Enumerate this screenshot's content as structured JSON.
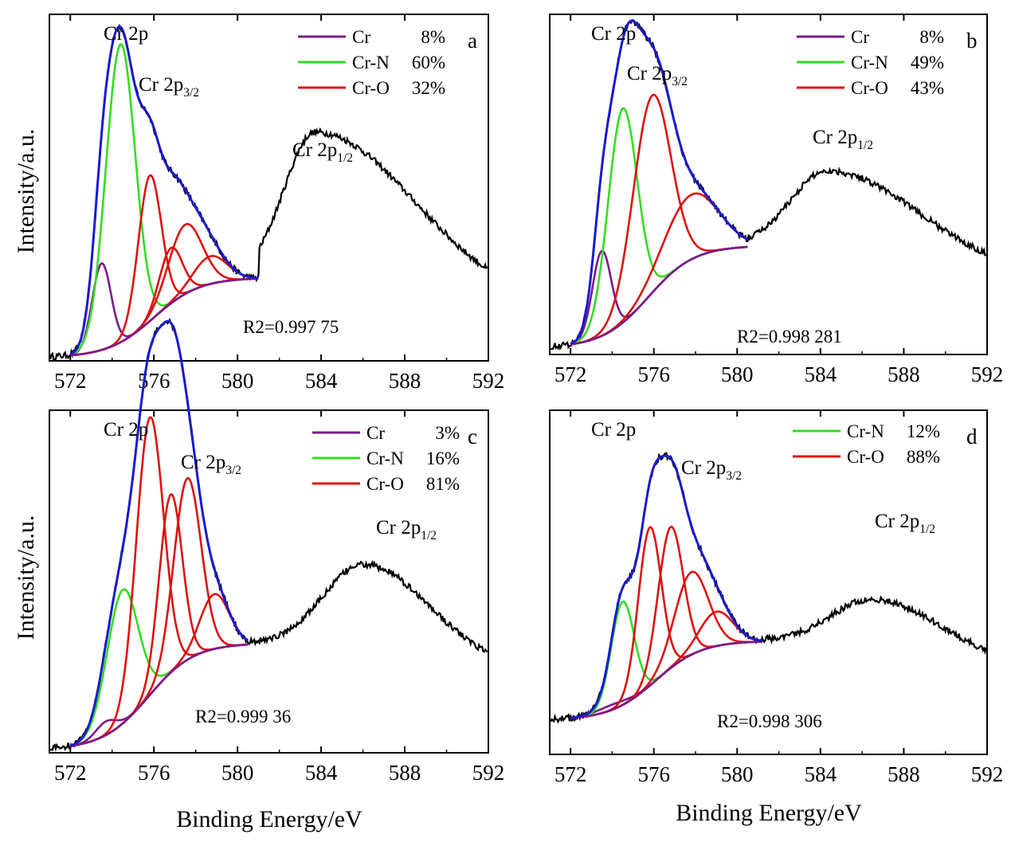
{
  "figure": {
    "ylabel": "Intensity/a.u.",
    "xlabel": "Binding Energy/eV"
  },
  "colors": {
    "Cr": "#7a1a8c",
    "Cr-N": "#33dd22",
    "Cr-O": "#dd1111",
    "envelope": "#1a1acc",
    "raw": "#000000",
    "background": "#7a1a8c"
  },
  "chart_data": [
    {
      "type": "line",
      "panel": "a",
      "title_text": "Cr 2p",
      "peak_32": "Cr 2p3/2",
      "peak_12": "Cr 2p1/2",
      "r2": "R2=0.997 75",
      "xlim": [
        571,
        592
      ],
      "xticks": [
        572,
        576,
        580,
        584,
        588,
        592
      ],
      "legend": [
        {
          "name": "Cr",
          "pct": "8%"
        },
        {
          "name": "Cr-N",
          "pct": "60%"
        },
        {
          "name": "Cr-O",
          "pct": "32%"
        }
      ],
      "fit_range": [
        572,
        581
      ],
      "base": [
        0.01,
        0.24
      ],
      "peak_rel": [
        1.0,
        0.75
      ],
      "raw_peaks": [
        [
          574.4,
          0.86,
          0.85,
          2.6
        ],
        [
          583.7,
          0.64,
          1.5,
          4.5
        ]
      ],
      "components": [
        {
          "type": "Cr",
          "center": 573.5,
          "height": 0.25,
          "width": 0.45
        },
        {
          "type": "Cr-N",
          "center": 574.4,
          "height": 0.86,
          "width": 0.7
        },
        {
          "type": "Cr-O",
          "center": 575.8,
          "height": 0.42,
          "width": 0.55
        },
        {
          "type": "Cr-O",
          "center": 576.8,
          "height": 0.16,
          "width": 0.55
        },
        {
          "type": "Cr-O",
          "center": 577.5,
          "height": 0.2,
          "width": 0.8
        },
        {
          "type": "Cr-O",
          "center": 578.7,
          "height": 0.08,
          "width": 0.8
        }
      ]
    },
    {
      "type": "line",
      "panel": "b",
      "title_text": "Cr 2p",
      "peak_32": "Cr 2p3/2",
      "peak_12": "Cr 2p1/2",
      "r2": "R2=0.998 281",
      "xlim": [
        571,
        592
      ],
      "xticks": [
        572,
        576,
        580,
        584,
        588,
        592
      ],
      "legend": [
        {
          "name": "Cr",
          "pct": "8%"
        },
        {
          "name": "Cr-N",
          "pct": "49%"
        },
        {
          "name": "Cr-O",
          "pct": "43%"
        }
      ],
      "fit_range": [
        572,
        580.5
      ],
      "base": [
        0.02,
        0.32
      ],
      "peak_rel": [
        1.0,
        0.75
      ],
      "raw_peaks": [
        [
          574.7,
          0.75,
          1.0,
          2.6
        ],
        [
          584.3,
          0.52,
          1.8,
          4.0
        ]
      ],
      "components": [
        {
          "type": "Cr",
          "center": 573.5,
          "height": 0.25,
          "width": 0.45
        },
        {
          "type": "Cr-N",
          "center": 574.5,
          "height": 0.63,
          "width": 0.7
        },
        {
          "type": "Cr-O",
          "center": 575.9,
          "height": 0.58,
          "width": 0.9
        },
        {
          "type": "Cr-O",
          "center": 577.8,
          "height": 0.19,
          "width": 1.3
        }
      ]
    },
    {
      "type": "line",
      "panel": "c",
      "title_text": "Cr 2p",
      "peak_32": "Cr 2p3/2",
      "peak_12": "Cr 2p1/2",
      "r2": "R2=0.999 36",
      "xlim": [
        571,
        592
      ],
      "xticks": [
        572,
        576,
        580,
        584,
        588,
        592
      ],
      "legend": [
        {
          "name": "Cr",
          "pct": "3%"
        },
        {
          "name": "Cr-N",
          "pct": "16%"
        },
        {
          "name": "Cr-O",
          "pct": "81%"
        }
      ],
      "fit_range": [
        572,
        580.5
      ],
      "base": [
        0.01,
        0.32
      ],
      "peak_rel": [
        1.0,
        0.76
      ],
      "raw_peaks": [
        [
          576.3,
          0.66,
          1.4,
          2.2
        ],
        [
          586.0,
          0.53,
          2.0,
          3.0
        ]
      ],
      "components": [
        {
          "type": "Cr",
          "center": 573.7,
          "height": 0.04,
          "width": 0.5
        },
        {
          "type": "Cr-N",
          "center": 574.5,
          "height": 0.39,
          "width": 0.75
        },
        {
          "type": "Cr-O",
          "center": 575.8,
          "height": 0.81,
          "width": 0.65
        },
        {
          "type": "Cr-O",
          "center": 576.8,
          "height": 0.52,
          "width": 0.55
        },
        {
          "type": "Cr-O",
          "center": 577.6,
          "height": 0.53,
          "width": 0.65
        },
        {
          "type": "Cr-O",
          "center": 578.9,
          "height": 0.16,
          "width": 0.7
        }
      ]
    },
    {
      "type": "line",
      "panel": "d",
      "title_text": "Cr 2p",
      "peak_32": "Cr 2p3/2",
      "peak_12": "Cr 2p1/2",
      "r2": "R2=0.998 306",
      "xlim": [
        571,
        592
      ],
      "xticks": [
        572,
        576,
        580,
        584,
        588,
        592
      ],
      "legend": [
        {
          "name": "Cr-N",
          "pct": "12%"
        },
        {
          "name": "Cr-O",
          "pct": "88%"
        }
      ],
      "fit_range": [
        572,
        581.2
      ],
      "base": [
        0.1,
        0.33
      ],
      "peak_rel": [
        1.0,
        0.77
      ],
      "raw_peaks": [
        [
          576.8,
          0.56,
          1.3,
          1.9
        ],
        [
          586.4,
          0.43,
          2.1,
          3.1
        ]
      ],
      "components": [
        {
          "type": "Cr",
          "center": 574.0,
          "height": 0.015,
          "width": 0.8
        },
        {
          "type": "Cr-N",
          "center": 574.5,
          "height": 0.3,
          "width": 0.55
        },
        {
          "type": "Cr-O",
          "center": 575.8,
          "height": 0.46,
          "width": 0.55
        },
        {
          "type": "Cr-O",
          "center": 576.8,
          "height": 0.41,
          "width": 0.6
        },
        {
          "type": "Cr-O",
          "center": 577.8,
          "height": 0.24,
          "width": 0.8
        },
        {
          "type": "Cr-O",
          "center": 579.0,
          "height": 0.1,
          "width": 0.8
        }
      ]
    }
  ]
}
